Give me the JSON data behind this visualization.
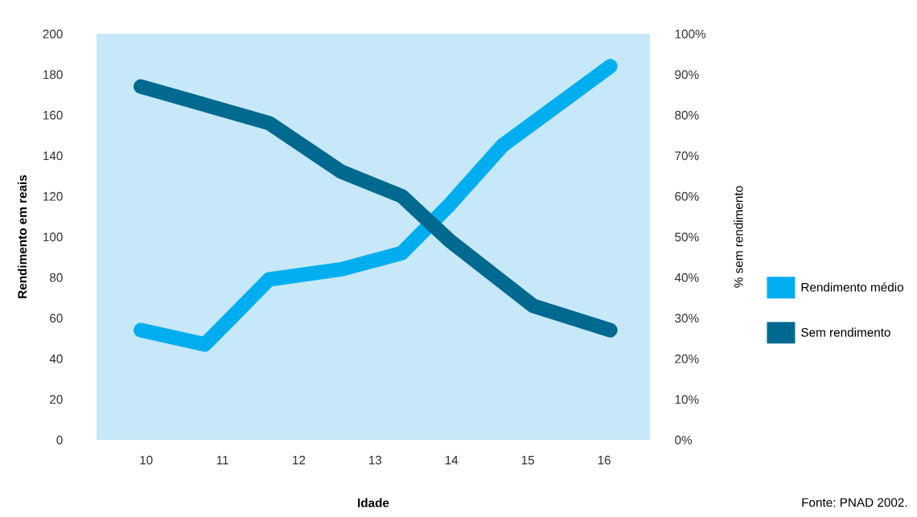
{
  "chart_data": {
    "type": "line",
    "xlabel": "Idade",
    "ylabel": "Rendimento em reais",
    "y2label": "% sem rendimento",
    "xlim": [
      9.35,
      16.6
    ],
    "xticks": [
      10,
      11,
      12,
      13,
      14,
      15,
      16
    ],
    "ylim": [
      0,
      200
    ],
    "yticks": [
      0,
      20,
      40,
      60,
      80,
      100,
      120,
      140,
      160,
      180,
      200
    ],
    "y2lim": [
      0,
      100
    ],
    "y2ticks": [
      {
        "value": 0,
        "label": "0%"
      },
      {
        "value": 10,
        "label": "10%"
      },
      {
        "value": 20,
        "label": "20%"
      },
      {
        "value": 30,
        "label": "30%"
      },
      {
        "value": 40,
        "label": "40%"
      },
      {
        "value": 50,
        "label": "50%"
      },
      {
        "value": 60,
        "label": "60%"
      },
      {
        "value": 70,
        "label": "70%"
      },
      {
        "value": 80,
        "label": "80%"
      },
      {
        "value": 90,
        "label": "90%"
      },
      {
        "value": 100,
        "label": "100%"
      }
    ],
    "series": [
      {
        "name": "Rendimento médio",
        "color": "#00aeef",
        "x": [
          9.93,
          10.77,
          11.61,
          12.56,
          13.35,
          13.98,
          14.67,
          16.08
        ],
        "values": [
          54,
          47,
          79,
          84,
          92,
          116,
          145,
          184
        ]
      },
      {
        "name": "Sem rendimento",
        "color": "#006990",
        "axis": "y2",
        "x": [
          9.93,
          11.61,
          12.56,
          13.35,
          13.98,
          15.07,
          16.08
        ],
        "values": [
          87,
          78,
          66,
          60,
          49,
          33,
          27
        ]
      }
    ],
    "grid": false,
    "legend": "right",
    "annotations": [
      "Fonte: PNAD 2002."
    ]
  }
}
